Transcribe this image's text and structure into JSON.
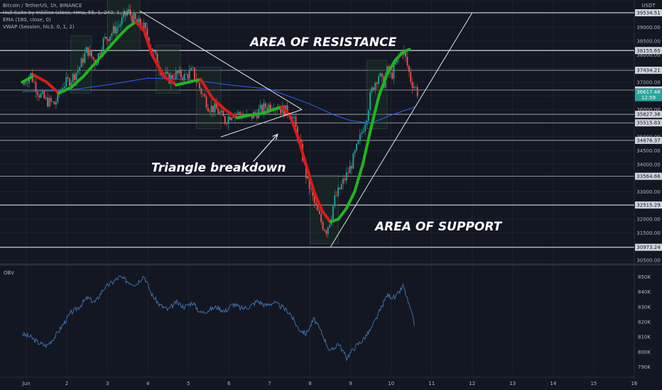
{
  "legend": {
    "symbol": "Bitcoin / TetherUS, 1h, BINANCE",
    "indicator1": "Hull Suite by InSilico (close, Hma, 55, 1, 240, 1, 40)",
    "indicator2": "EMA (180, close, 0)",
    "indicator3": "VWAP (Session, hlc3, 0, 1, 2)"
  },
  "annotations": {
    "resistance": "AREA OF RESISTANCE",
    "support": "AREA OF SUPPORT",
    "breakdown": "Triangle breakdown"
  },
  "obv_title": "OBV",
  "colors": {
    "background": "#131722",
    "hull_up": "#1fb51f",
    "hull_down": "#d81b1b",
    "candle_up": "#26a69a",
    "candle_down": "#ef5350",
    "ema": "#2962ff",
    "vwap": "#7ea89a",
    "obv": "#3d6ea8",
    "current_price_bg": "#26a69a"
  },
  "chart_data": [
    {
      "type": "line",
      "title": "",
      "unit_label": "USDT",
      "ylim": [
        30500,
        40000
      ],
      "price_ticks": [
        30500,
        31000,
        31500,
        32000,
        32500,
        33000,
        33500,
        34000,
        34500,
        35000,
        35500,
        36000,
        36500,
        37000,
        37500,
        38000,
        38500,
        39000,
        39500,
        40000
      ],
      "price_tick_labels": [
        "30500.00",
        "31000.00",
        "31500.00",
        "32000.00",
        "32500.00",
        "33000.00",
        "33500.00",
        "34000.00",
        "34500.00",
        "35000.00",
        "35500.00",
        "36000.00",
        "36500.00",
        "37000.00",
        "37500.00",
        "38000.00",
        "38500.00",
        "39000.00",
        "39500.00",
        "40000.00"
      ],
      "x_ticks": [
        1,
        2,
        3,
        4,
        5,
        6,
        7,
        8,
        9,
        10,
        11,
        12,
        13,
        14,
        15,
        16
      ],
      "x_tick_labels": [
        "Jun",
        "2",
        "3",
        "4",
        "5",
        "6",
        "7",
        "8",
        "9",
        "10",
        "11",
        "12",
        "13",
        "14",
        "15",
        "16"
      ],
      "horizontal_levels": [
        39534.51,
        38155.65,
        37434.21,
        36712.77,
        35827.36,
        35515.83,
        34876.37,
        33564.66,
        32515.29,
        30973.24
      ],
      "horizontal_level_labels": [
        "39534.51",
        "38155.65",
        "37434.21",
        "36712.77",
        "35827.36",
        "35515.83",
        "34876.37",
        "33564.66",
        "32515.29",
        "30973.24"
      ],
      "current_price": 36617.48,
      "current_price_label": "36617.48",
      "countdown": "12:59",
      "close_series": {
        "x": [
          0.9,
          1.1,
          1.3,
          1.5,
          1.7,
          1.9,
          2.1,
          2.3,
          2.5,
          2.7,
          2.9,
          3.1,
          3.3,
          3.5,
          3.7,
          3.9,
          4.1,
          4.3,
          4.5,
          4.7,
          4.9,
          5.1,
          5.3,
          5.5,
          5.7,
          5.9,
          6.1,
          6.3,
          6.5,
          6.7,
          6.9,
          7.1,
          7.3,
          7.5,
          7.6,
          7.7,
          7.8,
          7.9,
          8.0,
          8.1,
          8.2,
          8.3,
          8.4,
          8.5,
          8.6,
          8.8,
          9.0,
          9.2,
          9.4,
          9.5,
          9.6,
          9.7,
          9.8,
          9.9,
          10.0,
          10.1,
          10.2,
          10.3,
          10.4,
          10.5,
          10.6,
          10.65
        ],
        "y": [
          36900,
          37300,
          36600,
          36300,
          36200,
          36900,
          37100,
          37500,
          38200,
          37700,
          38500,
          38800,
          39100,
          39600,
          39200,
          39000,
          38200,
          37500,
          37100,
          37300,
          37200,
          37400,
          36700,
          36100,
          36000,
          35600,
          35900,
          35800,
          35700,
          35900,
          36100,
          36200,
          36000,
          35900,
          35600,
          35000,
          34400,
          33600,
          33100,
          32600,
          32200,
          31800,
          31600,
          32000,
          32700,
          33300,
          33900,
          34800,
          35800,
          36600,
          37000,
          37300,
          36900,
          37400,
          37200,
          37600,
          38000,
          38200,
          37600,
          37000,
          36800,
          36617
        ]
      },
      "ema_180": {
        "x": [
          0.9,
          2.0,
          3.0,
          4.0,
          5.0,
          6.0,
          7.0,
          8.0,
          8.6,
          9.0,
          9.5,
          10.0,
          10.6
        ],
        "y": [
          36650,
          36700,
          36900,
          37150,
          37100,
          36900,
          36750,
          36200,
          35800,
          35600,
          35500,
          35800,
          36100
        ]
      },
      "hull": {
        "x": [
          0.9,
          1.2,
          1.5,
          1.8,
          2.1,
          2.4,
          2.7,
          3.0,
          3.3,
          3.5,
          3.7,
          3.9,
          4.1,
          4.4,
          4.7,
          5.0,
          5.3,
          5.6,
          5.9,
          6.2,
          6.5,
          6.8,
          7.1,
          7.3,
          7.5,
          7.7,
          7.9,
          8.1,
          8.3,
          8.5,
          8.7,
          8.9,
          9.1,
          9.3,
          9.5,
          9.7,
          9.9,
          10.1,
          10.3,
          10.45
        ],
        "y": [
          37000,
          37250,
          37000,
          36600,
          36800,
          37200,
          37700,
          38200,
          38700,
          39000,
          39200,
          38900,
          38000,
          37200,
          36900,
          37000,
          37100,
          36400,
          36000,
          35700,
          35800,
          35850,
          36000,
          36100,
          35800,
          35000,
          34000,
          33000,
          32300,
          31900,
          32000,
          32400,
          33000,
          34000,
          35300,
          36500,
          37300,
          37800,
          38100,
          38200
        ],
        "direction": [
          "up",
          "up",
          "down",
          "down",
          "up",
          "up",
          "up",
          "up",
          "up",
          "up",
          "up",
          "down",
          "down",
          "down",
          "down",
          "up",
          "up",
          "down",
          "down",
          "down",
          "up",
          "up",
          "up",
          "up",
          "down",
          "down",
          "down",
          "down",
          "down",
          "down",
          "up",
          "up",
          "up",
          "up",
          "up",
          "up",
          "up",
          "up",
          "up",
          "up"
        ]
      },
      "triangle": {
        "upper": {
          "x": [
            3.8,
            7.8
          ],
          "y": [
            39600,
            36000
          ]
        },
        "lower": {
          "x": [
            5.8,
            7.8
          ],
          "y": [
            35000,
            36000
          ]
        }
      },
      "support_trendline": {
        "x": [
          8.5,
          12.0
        ],
        "y": [
          30973,
          39534
        ]
      },
      "arrow": {
        "x": [
          6.6,
          7.2
        ],
        "y": [
          34100,
          35100
        ]
      }
    },
    {
      "type": "line",
      "title": "OBV",
      "ylim": [
        785000,
        855000
      ],
      "ticks": [
        790000,
        800000,
        810000,
        820000,
        830000,
        840000,
        850000
      ],
      "tick_labels": [
        "790K",
        "800K",
        "810K",
        "820K",
        "830K",
        "840K",
        "850K"
      ],
      "x": [
        0.9,
        1.1,
        1.3,
        1.5,
        1.7,
        1.9,
        2.1,
        2.3,
        2.5,
        2.7,
        2.9,
        3.1,
        3.3,
        3.5,
        3.7,
        3.9,
        4.1,
        4.3,
        4.5,
        4.7,
        4.9,
        5.1,
        5.3,
        5.5,
        5.7,
        5.9,
        6.1,
        6.3,
        6.5,
        6.7,
        6.9,
        7.1,
        7.3,
        7.5,
        7.7,
        7.9,
        8.1,
        8.3,
        8.5,
        8.7,
        8.9,
        9.1,
        9.3,
        9.5,
        9.7,
        9.9,
        10.1,
        10.3,
        10.5,
        10.6
      ],
      "y": [
        812000,
        810000,
        806000,
        804000,
        810000,
        818000,
        826000,
        830000,
        836000,
        833000,
        842000,
        846000,
        850000,
        847000,
        845000,
        851000,
        838000,
        831000,
        828000,
        833000,
        830000,
        833000,
        826000,
        828000,
        830000,
        827000,
        832000,
        829000,
        830000,
        834000,
        831000,
        833000,
        830000,
        826000,
        816000,
        812000,
        822000,
        812000,
        800000,
        806000,
        796000,
        803000,
        808000,
        815000,
        826000,
        838000,
        836000,
        844000,
        826000,
        816000
      ]
    }
  ]
}
